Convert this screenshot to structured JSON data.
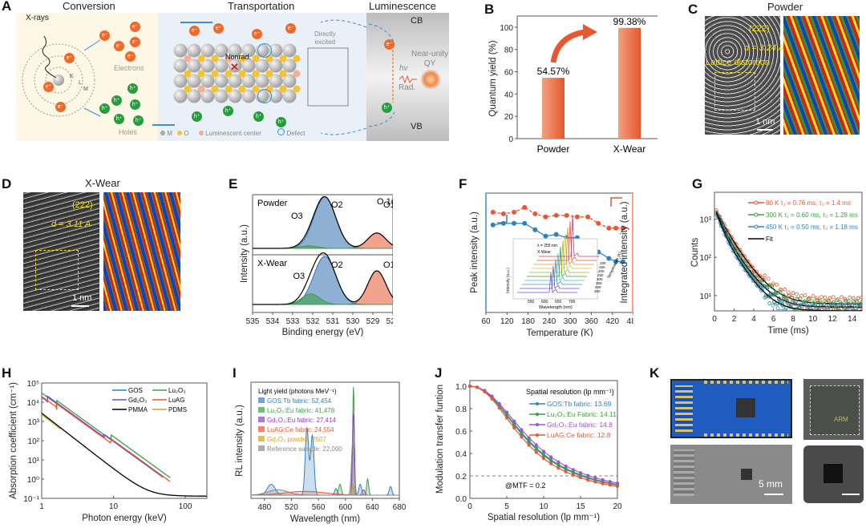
{
  "panels": {
    "A": {
      "label": "A",
      "sections": [
        "Conversion",
        "Transportation",
        "Luminescence"
      ],
      "xrays": "X-rays",
      "electron": "e⁻",
      "hole": "h⁺",
      "electrons_label": "Electrons",
      "holes_label": "Holes",
      "shells": [
        "K",
        "L",
        "M"
      ],
      "nonrad": "Nonrad.",
      "directly_excited": [
        "Directly",
        "excited"
      ],
      "legend": [
        "M",
        "O",
        "Luminescent center",
        "Defect"
      ],
      "cb": "CB",
      "vb": "VB",
      "hv": "hv",
      "rad": "Rad.",
      "qy": [
        "Near-unity",
        "QY"
      ]
    },
    "B": {
      "label": "B"
    },
    "C": {
      "label": "C",
      "title": "Powder",
      "plane": "(222)",
      "d": "d = 3.24 A",
      "note": "Lattice distortion",
      "scale": "1 nm"
    },
    "D": {
      "label": "D",
      "title": "X-Wear",
      "plane": "(222)",
      "d": "d = 3.11 A",
      "scale": "1 nm"
    },
    "E": {
      "label": "E",
      "top": "Powder",
      "bottom": "X-Wear",
      "o1s": "O 1s",
      "peaks": [
        "O1",
        "O2",
        "O3"
      ]
    },
    "F": {
      "label": "F",
      "inset": {
        "line1": "λ = 255 nm",
        "line2": "X-Wear",
        "ylabel": "Intensity (a.u.)",
        "xlabel": "Wavelength (nm)",
        "xticks": [
          "550",
          "600",
          "650",
          "700"
        ],
        "zlabel": "Temperature (K)",
        "zticks": [
          "100",
          "150",
          "200",
          "250",
          "300",
          "350",
          "400",
          "450"
        ]
      }
    },
    "G": {
      "label": "G"
    },
    "H": {
      "label": "H"
    },
    "I": {
      "label": "I"
    },
    "J": {
      "label": "J"
    },
    "K": {
      "label": "K",
      "scale": "5 mm",
      "chip_text": "ARM"
    }
  },
  "chart_data": [
    {
      "id": "B",
      "type": "bar",
      "categories": [
        "Powder",
        "X-Wear"
      ],
      "values": [
        54.57,
        99.38
      ],
      "data_labels": [
        "54.57%",
        "99.38%"
      ],
      "ylabel": "Quantum yield (%)",
      "xlabel": "",
      "ylim": [
        0,
        110
      ],
      "yticks": [
        0,
        20,
        40,
        60,
        80,
        100
      ],
      "color": "#e8572f"
    },
    {
      "id": "E",
      "type": "line",
      "xlabel": "Binding energy (eV)",
      "ylabel": "Intensity (a.u.)",
      "xlim": [
        535,
        528
      ],
      "xticks": [
        535,
        534,
        533,
        532,
        531,
        530,
        529,
        528
      ],
      "subplots": [
        {
          "name": "Powder",
          "peaks": [
            {
              "name": "O1",
              "center": 528.8,
              "height": 0.3,
              "color": "#e8572f"
            },
            {
              "name": "O2",
              "center": 531.4,
              "height": 1.0,
              "color": "#2f6fae"
            },
            {
              "name": "O3",
              "center": 532.2,
              "height": 0.05,
              "color": "#3aa043"
            }
          ]
        },
        {
          "name": "X-Wear",
          "peaks": [
            {
              "name": "O1",
              "center": 528.8,
              "height": 0.7,
              "color": "#e8572f"
            },
            {
              "name": "O2",
              "center": 531.4,
              "height": 1.0,
              "color": "#2f6fae"
            },
            {
              "name": "O3",
              "center": 532.1,
              "height": 0.22,
              "color": "#3aa043"
            }
          ]
        }
      ]
    },
    {
      "id": "F",
      "type": "line",
      "xlabel": "Temperature (K)",
      "ylabel": "Peak intensity (a.u.)",
      "ylabel_right": "Integrated intensity (a.u.)",
      "xlim": [
        60,
        480
      ],
      "xticks": [
        60,
        120,
        180,
        240,
        300,
        360,
        420,
        480
      ],
      "x": [
        80,
        110,
        140,
        170,
        200,
        230,
        260,
        290,
        320,
        350,
        380,
        410,
        430,
        450
      ],
      "series": [
        {
          "name": "Integrated intensity",
          "color": "#e8572f",
          "values": [
            0.93,
            0.92,
            0.93,
            0.96,
            0.92,
            0.9,
            0.91,
            0.91,
            0.9,
            0.9,
            0.86,
            0.83,
            0.83,
            0.83
          ]
        },
        {
          "name": "Peak intensity",
          "color": "#2f80c0",
          "values": [
            0.85,
            0.86,
            0.86,
            0.86,
            0.82,
            0.78,
            0.79,
            0.77,
            0.77,
            0.74,
            0.68,
            0.64,
            0.62,
            0.62
          ]
        }
      ]
    },
    {
      "id": "G",
      "type": "scatter",
      "xlabel": "Time (ms)",
      "ylabel": "Counts",
      "xlim": [
        0,
        15
      ],
      "ylim_log10": [
        0.6,
        3.7
      ],
      "xticks": [
        0,
        2,
        4,
        6,
        8,
        10,
        12,
        14
      ],
      "yticks": [
        "10¹",
        "10²",
        "10³"
      ],
      "series": [
        {
          "name": "80 K τ₁ = 0.76 ms, τ₂ = 1.4 ms",
          "color": "#e8572f",
          "tau1": 0.76,
          "tau2": 1.4,
          "floor": 6
        },
        {
          "name": "300 K τ₁ = 0.60 ms, τ₂ = 1.28 ms",
          "color": "#3aa043",
          "tau1": 0.6,
          "tau2": 1.28,
          "floor": 5
        },
        {
          "name": "450 K τ₁ = 0.50 ms, τ₂ = 1.18 ms",
          "color": "#2f80c0",
          "tau1": 0.5,
          "tau2": 1.18,
          "floor": 4
        },
        {
          "name": "Fit",
          "color": "#000000"
        }
      ]
    },
    {
      "id": "H",
      "type": "line",
      "xlabel": "Photon energy (keV)",
      "ylabel": "Absorption coefficient (cm⁻¹)",
      "xscale": "log",
      "yscale": "log",
      "xlim": [
        1,
        200
      ],
      "ylim": [
        0.1,
        100000
      ],
      "xticks": [
        "1",
        "10",
        "100"
      ],
      "yticks": [
        "10⁻¹",
        "10⁰",
        "10¹",
        "10²",
        "10³",
        "10⁴",
        "10⁵"
      ],
      "series": [
        {
          "name": "GOS",
          "color": "#2f80c0",
          "base": 18000,
          "edges": [
            [
              1.2,
              1.8
            ],
            [
              7.2,
              1.4
            ],
            [
              50,
              4.5
            ]
          ]
        },
        {
          "name": "Lu₂O₃",
          "color": "#3aa043",
          "base": 30000,
          "edges": [
            [
              1.6,
              1.5
            ],
            [
              9.2,
              1.8
            ],
            [
              63,
              4.5
            ]
          ]
        },
        {
          "name": "Gd₂O₃",
          "color": "#8a3fd0",
          "base": 19000,
          "edges": [
            [
              1.2,
              1.8
            ],
            [
              7.5,
              1.4
            ],
            [
              50,
              4.3
            ]
          ]
        },
        {
          "name": "LuAG",
          "color": "#e8572f",
          "base": 20000,
          "edges": [
            [
              1.6,
              1.5
            ],
            [
              9.2,
              1.7
            ],
            [
              63,
              4.4
            ]
          ]
        },
        {
          "name": "PMMA",
          "color": "#000000",
          "base": 2700,
          "edges": []
        },
        {
          "name": "PDMS",
          "color": "#d4a020",
          "base": 2300,
          "edges": [
            [
              1.84,
              3.3
            ]
          ]
        }
      ]
    },
    {
      "id": "I",
      "type": "area",
      "xlabel": "Wavelength (nm)",
      "ylabel": "RL intensity (a.u.)",
      "xlim": [
        460,
        680
      ],
      "xticks": [
        480,
        520,
        560,
        600,
        640,
        680
      ],
      "legend_title": "Light yield (photons MeV⁻¹)",
      "series": [
        {
          "name": "GOS:Tb fabric: 52,454",
          "color": "#2f80c0"
        },
        {
          "name": "Lu₂O₃:Eu fabric: 41,478",
          "color": "#3aa043"
        },
        {
          "name": "Gd₂O₃:Eu fabric: 27,414",
          "color": "#8a3fd0"
        },
        {
          "name": "LuAG:Ce fabric: 24,554",
          "color": "#e8572f"
        },
        {
          "name": "Gd₂O₃ powder: 2507",
          "color": "#d4a020"
        },
        {
          "name": "Reference sample: 22,000",
          "color": "#888888"
        }
      ]
    },
    {
      "id": "J",
      "type": "line",
      "xlabel": "Spatial resolution (lp mm⁻¹)",
      "ylabel": "Modulation transfer funtion",
      "xlim": [
        0,
        20
      ],
      "ylim": [
        0,
        1.0
      ],
      "xticks": [
        0,
        5,
        10,
        15,
        20
      ],
      "yticks": [
        "0.0",
        "0.2",
        "0.4",
        "0.6",
        "0.8",
        "1.0"
      ],
      "legend_title": "Spatial resolution (lp mm⁻¹)",
      "annotation": "@MTF = 0.2",
      "threshold": 0.2,
      "series": [
        {
          "name": "GOS:Tb fabric: 13.69",
          "color": "#2f80c0",
          "k": 0.98
        },
        {
          "name": "Lu₂O₃:Eu Fabric: 14.11",
          "color": "#3aa043",
          "k": 1.0
        },
        {
          "name": "Gd₂O₃:Eu fabric: 14.8",
          "color": "#a050e0",
          "k": 1.05
        },
        {
          "name": "LuAG:Ce fabric: 12.8",
          "color": "#e8572f",
          "k": 0.93
        }
      ]
    }
  ]
}
